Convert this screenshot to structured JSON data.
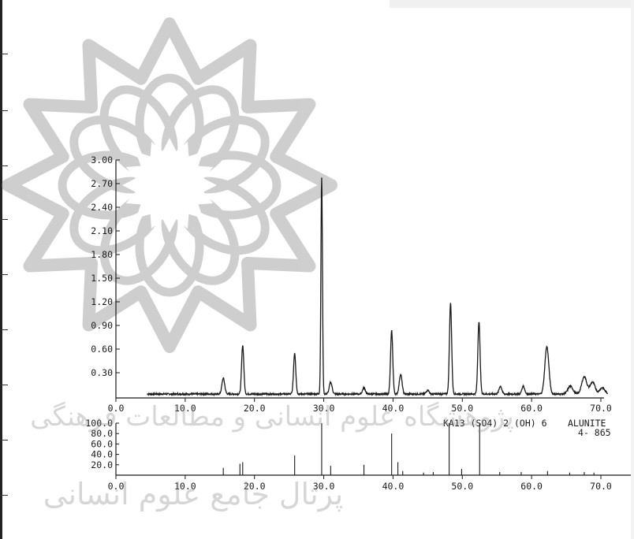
{
  "colors": {
    "ink": "#1a1a1a",
    "watermark": "#8c8c8c",
    "paper": "#ffffff"
  },
  "watermark": {
    "name": "flower-emblem-watermark",
    "text_line1": "پرتال جامع علوم انسانی",
    "text_line2": "پژوهشگاه علوم انسانی و مطالعات فرهنگی"
  },
  "chart_data": [
    {
      "type": "line",
      "title": "",
      "xlabel": "",
      "ylabel": "",
      "xlim": [
        0,
        70
      ],
      "ylim": [
        0,
        3.0
      ],
      "x_ticks": [
        0,
        10,
        20,
        30,
        40,
        50,
        60,
        70
      ],
      "x_tick_labels": [
        "0.0",
        "10.0",
        "20.0",
        "30.0",
        "40.0",
        "50.0",
        "60.0",
        "70.0"
      ],
      "y_ticks": [
        0.3,
        0.6,
        0.9,
        1.2,
        1.5,
        1.8,
        2.1,
        2.4,
        2.7,
        3.0
      ],
      "y_tick_labels": [
        "0.30",
        "0.60",
        "0.90",
        "1.20",
        "1.50",
        "1.80",
        "2.10",
        "2.40",
        "2.70",
        "3.00"
      ],
      "baseline": 0.03,
      "peaks": [
        {
          "x": 15.5,
          "y": 0.2
        },
        {
          "x": 18.3,
          "y": 0.62
        },
        {
          "x": 25.8,
          "y": 0.52
        },
        {
          "x": 29.7,
          "y": 2.75
        },
        {
          "x": 31.0,
          "y": 0.15
        },
        {
          "x": 35.8,
          "y": 0.08
        },
        {
          "x": 39.8,
          "y": 0.8
        },
        {
          "x": 41.1,
          "y": 0.25
        },
        {
          "x": 45.0,
          "y": 0.05
        },
        {
          "x": 48.3,
          "y": 1.15
        },
        {
          "x": 52.4,
          "y": 0.92
        },
        {
          "x": 55.5,
          "y": 0.1
        },
        {
          "x": 58.8,
          "y": 0.1
        },
        {
          "x": 62.2,
          "y": 0.6
        },
        {
          "x": 65.6,
          "y": 0.1
        },
        {
          "x": 67.6,
          "y": 0.22
        },
        {
          "x": 68.8,
          "y": 0.15
        },
        {
          "x": 70.2,
          "y": 0.08
        }
      ]
    },
    {
      "type": "bar",
      "title": "",
      "xlim": [
        0,
        70
      ],
      "ylim": [
        0,
        100
      ],
      "x_ticks": [
        0,
        10,
        20,
        30,
        40,
        50,
        60,
        70
      ],
      "x_tick_labels": [
        "0.0",
        "10.0",
        "20.0",
        "30.0",
        "40.0",
        "50.0",
        "60.0",
        "70.0"
      ],
      "y_ticks": [
        20,
        40,
        60,
        80,
        100
      ],
      "y_tick_labels": [
        "20.0",
        "40.0",
        "60.0",
        "80.0",
        "100.0"
      ],
      "annotation_formula": "KA13 (SO4) 2 (OH) 6",
      "annotation_name": "ALUNITE",
      "annotation_card": "4- 865",
      "lines": [
        {
          "x": 15.5,
          "y": 14
        },
        {
          "x": 17.9,
          "y": 22
        },
        {
          "x": 18.3,
          "y": 25
        },
        {
          "x": 25.8,
          "y": 38
        },
        {
          "x": 29.7,
          "y": 100
        },
        {
          "x": 31.0,
          "y": 18
        },
        {
          "x": 35.8,
          "y": 20
        },
        {
          "x": 39.8,
          "y": 80
        },
        {
          "x": 40.7,
          "y": 25
        },
        {
          "x": 41.4,
          "y": 8
        },
        {
          "x": 44.4,
          "y": 5
        },
        {
          "x": 45.8,
          "y": 6
        },
        {
          "x": 48.1,
          "y": 100
        },
        {
          "x": 49.9,
          "y": 12
        },
        {
          "x": 52.5,
          "y": 100
        },
        {
          "x": 55.4,
          "y": 6
        },
        {
          "x": 58.5,
          "y": 6
        },
        {
          "x": 62.3,
          "y": 8
        },
        {
          "x": 65.5,
          "y": 5
        },
        {
          "x": 67.6,
          "y": 6
        },
        {
          "x": 69.0,
          "y": 5
        }
      ]
    }
  ]
}
